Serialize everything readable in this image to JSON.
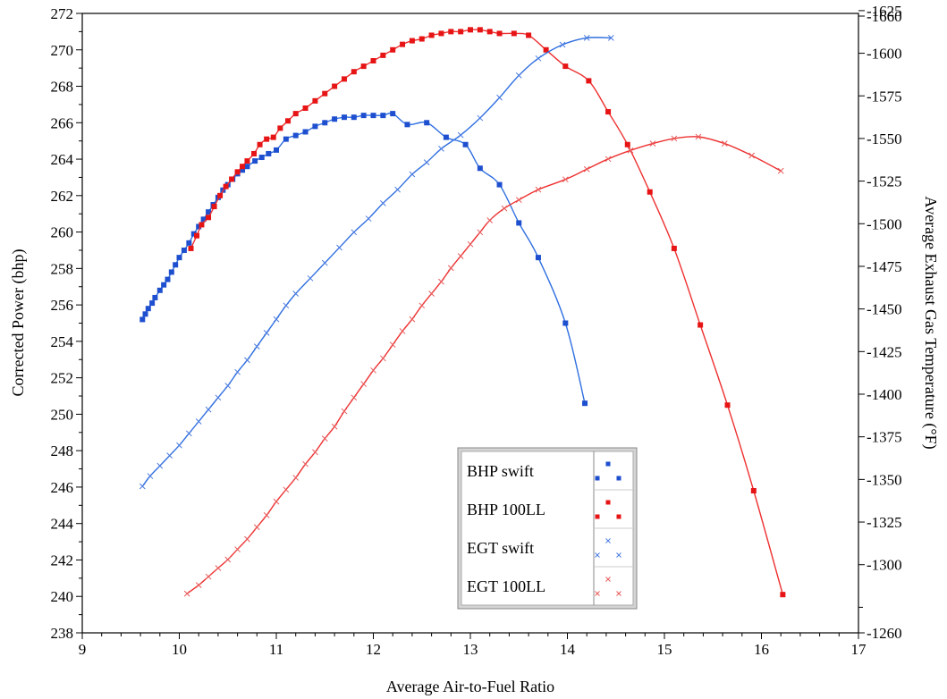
{
  "chart_data": {
    "type": "scatter",
    "title": "",
    "xlabel": "Average Air-to-Fuel Ratio",
    "ylabel": "Corrected Power (bhp)",
    "y2label": "Average Exhaust Gas Temperature (°F)",
    "xlim": [
      9,
      17
    ],
    "ylim": [
      238,
      272
    ],
    "y2lim": [
      1260,
      1660
    ],
    "x_ticks": [
      9,
      10,
      11,
      12,
      13,
      14,
      15,
      16,
      17
    ],
    "y_ticks": [
      238,
      240,
      242,
      244,
      246,
      248,
      250,
      252,
      254,
      256,
      258,
      260,
      262,
      264,
      266,
      268,
      270,
      272
    ],
    "y2_ticks": [
      1260,
      1300,
      1325,
      1350,
      1375,
      1400,
      1425,
      1450,
      1475,
      1500,
      1525,
      1550,
      1575,
      1600,
      1625,
      1660
    ],
    "grid": false,
    "legend_position": "bottom-right",
    "series": [
      {
        "name": "BHP swift",
        "axis": "left",
        "marker": "square",
        "color": "#1e4fcf",
        "line_color": "#2f6fe0",
        "x": [
          9.62,
          9.65,
          9.68,
          9.72,
          9.75,
          9.8,
          9.84,
          9.88,
          9.92,
          9.96,
          10.0,
          10.05,
          10.1,
          10.15,
          10.2,
          10.25,
          10.3,
          10.35,
          10.4,
          10.45,
          10.5,
          10.55,
          10.6,
          10.65,
          10.7,
          10.78,
          10.85,
          10.92,
          11.0,
          11.1,
          11.2,
          11.3,
          11.4,
          11.5,
          11.6,
          11.7,
          11.8,
          11.9,
          12.0,
          12.1,
          12.2,
          12.35,
          12.55,
          12.75,
          12.95,
          13.1,
          13.3,
          13.5,
          13.7,
          13.98,
          14.18
        ],
        "y": [
          255.2,
          255.5,
          255.8,
          256.1,
          256.4,
          256.8,
          257.1,
          257.4,
          257.8,
          258.2,
          258.6,
          259.0,
          259.4,
          259.9,
          260.3,
          260.7,
          261.1,
          261.5,
          261.9,
          262.3,
          262.6,
          262.9,
          263.2,
          263.4,
          263.6,
          263.9,
          264.1,
          264.3,
          264.5,
          265.1,
          265.3,
          265.5,
          265.8,
          266.0,
          266.2,
          266.3,
          266.3,
          266.4,
          266.4,
          266.4,
          266.5,
          265.9,
          266.0,
          265.2,
          264.8,
          263.5,
          262.6,
          260.5,
          258.6,
          255.0,
          250.6
        ]
      },
      {
        "name": "BHP 100LL",
        "axis": "left",
        "marker": "square",
        "color": "#e61414",
        "line_color": "#ee3030",
        "x": [
          10.12,
          10.18,
          10.23,
          10.3,
          10.36,
          10.42,
          10.48,
          10.54,
          10.6,
          10.65,
          10.7,
          10.77,
          10.83,
          10.9,
          10.97,
          11.04,
          11.12,
          11.2,
          11.3,
          11.4,
          11.5,
          11.6,
          11.7,
          11.8,
          11.9,
          12.0,
          12.1,
          12.2,
          12.3,
          12.4,
          12.5,
          12.6,
          12.7,
          12.8,
          12.9,
          13.0,
          13.1,
          13.2,
          13.3,
          13.45,
          13.6,
          13.78,
          13.98,
          14.22,
          14.42,
          14.62,
          14.85,
          15.1,
          15.37,
          15.65,
          15.92,
          16.22
        ],
        "y": [
          259.1,
          259.8,
          260.4,
          260.8,
          261.4,
          262.0,
          262.5,
          262.9,
          263.3,
          263.6,
          263.9,
          264.3,
          264.8,
          265.1,
          265.2,
          265.7,
          266.1,
          266.5,
          266.8,
          267.2,
          267.6,
          268.0,
          268.4,
          268.8,
          269.1,
          269.4,
          269.7,
          270.0,
          270.3,
          270.5,
          270.6,
          270.8,
          270.9,
          271.0,
          271.0,
          271.1,
          271.1,
          271.0,
          270.9,
          270.9,
          270.8,
          270.0,
          269.1,
          268.3,
          266.6,
          264.8,
          262.2,
          259.1,
          254.9,
          250.5,
          245.8,
          240.1
        ]
      },
      {
        "name": "EGT swift",
        "axis": "right",
        "marker": "x",
        "color": "#4a7be0",
        "line_color": "#2f6fe0",
        "x": [
          9.62,
          9.7,
          9.8,
          9.9,
          10.0,
          10.1,
          10.2,
          10.3,
          10.4,
          10.5,
          10.6,
          10.7,
          10.8,
          10.9,
          11.0,
          11.1,
          11.2,
          11.35,
          11.5,
          11.65,
          11.8,
          11.95,
          12.1,
          12.25,
          12.4,
          12.55,
          12.7,
          12.9,
          13.1,
          13.3,
          13.5,
          13.7,
          13.95,
          14.2,
          14.45
        ],
        "y": [
          1346,
          1352,
          1358,
          1364,
          1370,
          1377,
          1384,
          1391,
          1398,
          1405,
          1413,
          1420,
          1428,
          1436,
          1444,
          1452,
          1459,
          1468,
          1477,
          1486,
          1495,
          1503,
          1512,
          1520,
          1529,
          1536,
          1544,
          1552,
          1562,
          1574,
          1587,
          1597,
          1605,
          1609,
          1609
        ]
      },
      {
        "name": "EGT 100LL",
        "axis": "right",
        "marker": "x",
        "color": "#e85a5a",
        "line_color": "#ee3030",
        "x": [
          10.08,
          10.2,
          10.3,
          10.4,
          10.5,
          10.6,
          10.7,
          10.8,
          10.9,
          11.0,
          11.1,
          11.2,
          11.3,
          11.4,
          11.5,
          11.6,
          11.7,
          11.8,
          11.9,
          12.0,
          12.1,
          12.2,
          12.3,
          12.4,
          12.5,
          12.6,
          12.7,
          12.8,
          12.9,
          13.0,
          13.1,
          13.2,
          13.35,
          13.5,
          13.7,
          13.98,
          14.2,
          14.42,
          14.65,
          14.88,
          15.1,
          15.35,
          15.62,
          15.9,
          16.2
        ],
        "y": [
          1283,
          1288,
          1293,
          1298,
          1303,
          1309,
          1315,
          1322,
          1329,
          1337,
          1344,
          1351,
          1359,
          1366,
          1374,
          1381,
          1390,
          1398,
          1406,
          1414,
          1421,
          1429,
          1437,
          1444,
          1452,
          1459,
          1466,
          1474,
          1481,
          1488,
          1495,
          1502,
          1509,
          1514,
          1520,
          1526,
          1532,
          1538,
          1543,
          1547,
          1550,
          1551,
          1547,
          1540,
          1531
        ]
      }
    ]
  }
}
